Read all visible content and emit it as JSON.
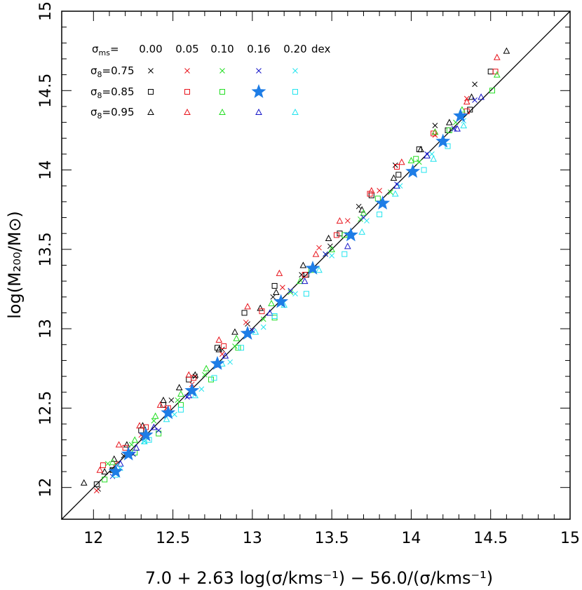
{
  "chart_data": {
    "type": "scatter",
    "xlim": [
      11.8,
      15.0
    ],
    "ylim": [
      11.8,
      15.0
    ],
    "x_ticks": [
      "12",
      "12.5",
      "13",
      "13.5",
      "14",
      "14.5",
      "15"
    ],
    "y_ticks": [
      "12",
      "12.5",
      "13",
      "13.5",
      "14",
      "14.5",
      "15"
    ],
    "xlabel": "7.0 + 2.63 log(σ/kms⁻¹) − 56.0/(σ/kms⁻¹)",
    "ylabel": "log(M₂₀₀/M⊙)",
    "grid": false,
    "reference_line": "y = x",
    "legend": {
      "placement": "top-left",
      "sigma_ms_label": "σms=",
      "sigma_ms_values": [
        "0.00",
        "0.05",
        "0.10",
        "0.16",
        "0.20"
      ],
      "dex_label": "dex",
      "rows": [
        {
          "label": "σ8=0.75",
          "marker": "cross"
        },
        {
          "label": "σ8=0.85",
          "marker": "square"
        },
        {
          "label": "σ8=0.95",
          "marker": "triangle"
        }
      ],
      "highlight": {
        "sigma_ms": "0.16",
        "sigma8": "σ8=0.85",
        "marker": "star"
      }
    },
    "colors": {
      "0.00": "#000000",
      "0.05": "#e8141c",
      "0.10": "#22dd22",
      "0.16": "#1414c8",
      "0.20": "#22e4ee",
      "star": "#1e7de6",
      "line": "#000000"
    },
    "highlight_series": {
      "name": "σms=0.16, σ8=0.85",
      "x": [
        12.14,
        12.22,
        12.33,
        12.47,
        12.62,
        12.78,
        12.97,
        13.18,
        13.38,
        13.62,
        13.82,
        14.01,
        14.2,
        14.31
      ],
      "y": [
        12.1,
        12.21,
        12.33,
        12.47,
        12.61,
        12.78,
        12.97,
        13.17,
        13.38,
        13.59,
        13.79,
        13.99,
        14.18,
        14.34
      ]
    },
    "scatter_series": [
      {
        "marker": "triangle",
        "color": "#000000",
        "x": [
          11.94,
          12.07,
          12.13,
          12.21,
          12.31,
          12.44,
          12.54,
          12.64,
          12.79,
          12.89,
          13.05,
          13.15,
          13.32,
          13.48,
          13.69,
          13.89,
          14.06,
          14.24,
          14.38,
          14.6
        ],
        "y": [
          12.03,
          12.1,
          12.18,
          12.27,
          12.39,
          12.55,
          12.63,
          12.71,
          12.87,
          12.98,
          13.13,
          13.23,
          13.4,
          13.57,
          13.75,
          13.95,
          14.13,
          14.3,
          14.46,
          14.75
        ]
      },
      {
        "marker": "cross",
        "color": "#000000",
        "x": [
          12.03,
          12.12,
          12.19,
          12.31,
          12.49,
          12.64,
          12.81,
          12.97,
          13.13,
          13.31,
          13.49,
          13.67,
          13.9,
          14.15,
          14.4
        ],
        "y": [
          11.99,
          12.11,
          12.2,
          12.32,
          12.55,
          12.7,
          12.87,
          13.03,
          13.2,
          13.34,
          13.52,
          13.77,
          14.03,
          14.28,
          14.54
        ]
      },
      {
        "marker": "square",
        "color": "#000000",
        "x": [
          12.02,
          12.12,
          12.3,
          12.44,
          12.6,
          12.78,
          12.95,
          13.14,
          13.34,
          13.55,
          13.75,
          13.92,
          14.05,
          14.23,
          14.37,
          14.5
        ],
        "y": [
          12.02,
          12.11,
          12.36,
          12.52,
          12.68,
          12.88,
          13.1,
          13.27,
          13.34,
          13.6,
          13.84,
          13.97,
          14.13,
          14.25,
          14.38,
          14.62
        ]
      },
      {
        "marker": "triangle",
        "color": "#e8141c",
        "x": [
          12.04,
          12.16,
          12.29,
          12.42,
          12.6,
          12.79,
          12.97,
          13.17,
          13.4,
          13.55,
          13.75,
          13.94,
          14.15,
          14.35,
          14.54
        ],
        "y": [
          12.11,
          12.27,
          12.39,
          12.52,
          12.71,
          12.93,
          13.14,
          13.35,
          13.47,
          13.68,
          13.87,
          14.05,
          14.24,
          14.43,
          14.71
        ]
      },
      {
        "marker": "cross",
        "color": "#e8141c",
        "x": [
          12.02,
          12.14,
          12.3,
          12.46,
          12.62,
          12.81,
          12.96,
          13.19,
          13.42,
          13.6,
          13.8,
          14.15,
          14.35
        ],
        "y": [
          11.98,
          12.15,
          12.33,
          12.5,
          12.65,
          12.84,
          13.04,
          13.26,
          13.51,
          13.68,
          13.87,
          14.22,
          14.45
        ]
      },
      {
        "marker": "square",
        "color": "#e8141c",
        "x": [
          12.06,
          12.2,
          12.33,
          12.47,
          12.63,
          12.82,
          13.06,
          13.33,
          13.53,
          13.74,
          13.91,
          14.14,
          14.35,
          14.53
        ],
        "y": [
          12.14,
          12.25,
          12.38,
          12.5,
          12.69,
          12.89,
          13.11,
          13.34,
          13.59,
          13.85,
          14.02,
          14.23,
          14.37,
          14.62
        ]
      },
      {
        "marker": "triangle",
        "color": "#22dd22",
        "x": [
          12.12,
          12.26,
          12.39,
          12.55,
          12.71,
          12.9,
          13.12,
          13.3,
          13.5,
          13.7,
          14.0,
          14.15,
          14.32,
          14.54
        ],
        "y": [
          12.16,
          12.3,
          12.45,
          12.59,
          12.75,
          12.94,
          13.16,
          13.3,
          13.5,
          13.73,
          14.06,
          14.24,
          14.38,
          14.6
        ]
      },
      {
        "marker": "cross",
        "color": "#22dd22",
        "x": [
          12.09,
          12.24,
          12.38,
          12.53,
          12.7,
          12.89,
          13.07,
          13.24,
          13.46,
          13.68,
          13.87,
          14.05,
          14.28
        ],
        "y": [
          12.15,
          12.27,
          12.42,
          12.55,
          12.71,
          12.89,
          13.06,
          13.23,
          13.47,
          13.69,
          13.86,
          14.05,
          14.3
        ]
      },
      {
        "marker": "square",
        "color": "#22dd22",
        "x": [
          12.07,
          12.26,
          12.41,
          12.55,
          12.74,
          12.91,
          13.14,
          13.37,
          13.58,
          13.79,
          14.03,
          14.24,
          14.51
        ],
        "y": [
          12.05,
          12.22,
          12.34,
          12.52,
          12.68,
          12.88,
          13.07,
          13.37,
          13.59,
          13.82,
          14.07,
          14.25,
          14.5
        ]
      },
      {
        "marker": "triangle",
        "color": "#1414c8",
        "x": [
          12.17,
          12.27,
          12.38,
          12.6,
          12.83,
          13.11,
          13.33,
          13.6,
          13.91,
          14.1,
          14.29,
          14.44
        ],
        "y": [
          12.15,
          12.25,
          12.38,
          12.58,
          12.83,
          13.1,
          13.3,
          13.52,
          13.9,
          14.09,
          14.26,
          14.46
        ]
      },
      {
        "marker": "cross",
        "color": "#1414c8",
        "x": [
          12.12,
          12.25,
          12.41,
          12.59,
          12.79,
          13.0,
          13.24,
          13.46,
          13.7,
          13.91,
          14.1,
          14.27,
          14.4
        ],
        "y": [
          12.07,
          12.21,
          12.36,
          12.57,
          12.77,
          12.99,
          13.24,
          13.47,
          13.7,
          13.91,
          14.1,
          14.26,
          14.44
        ]
      },
      {
        "marker": "triangle",
        "color": "#22e4ee",
        "x": [
          12.15,
          12.32,
          12.46,
          12.64,
          12.81,
          13.02,
          13.2,
          13.42,
          13.69,
          13.9,
          14.14,
          14.33
        ],
        "y": [
          12.13,
          12.29,
          12.43,
          12.58,
          12.78,
          12.98,
          13.15,
          13.37,
          13.61,
          13.85,
          14.07,
          14.28
        ]
      },
      {
        "marker": "cross",
        "color": "#22e4ee",
        "x": [
          12.17,
          12.32,
          12.51,
          12.68,
          12.86,
          13.07,
          13.27,
          13.5,
          13.72,
          13.93,
          14.13,
          14.33
        ],
        "y": [
          12.12,
          12.29,
          12.46,
          12.62,
          12.79,
          13.01,
          13.22,
          13.46,
          13.68,
          13.9,
          14.1,
          14.31
        ]
      },
      {
        "marker": "square",
        "color": "#22e4ee",
        "x": [
          12.14,
          12.35,
          12.55,
          12.76,
          12.93,
          13.14,
          13.34,
          13.58,
          13.8,
          14.08,
          14.23
        ],
        "y": [
          12.08,
          12.3,
          12.49,
          12.69,
          12.88,
          13.08,
          13.22,
          13.47,
          13.72,
          14.0,
          14.15
        ]
      }
    ]
  }
}
